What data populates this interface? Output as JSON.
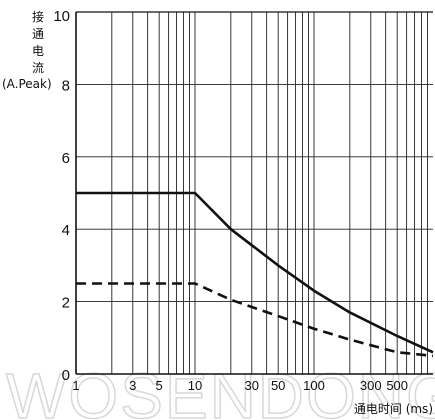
{
  "chart_data": {
    "type": "line",
    "title": "",
    "ylabel_chars": [
      "接",
      "通",
      "电",
      "流"
    ],
    "ylabel_unit": "(A.Peak)",
    "xlabel": "通电时间 (ms)",
    "xscale": "log",
    "xlim": [
      1,
      1000
    ],
    "ylim": [
      0,
      10
    ],
    "grid": true,
    "y_ticks": [
      "0",
      "2",
      "4",
      "6",
      "8",
      "10"
    ],
    "x_ticks": [
      {
        "value": 1,
        "label": "1"
      },
      {
        "value": 3,
        "label": "3"
      },
      {
        "value": 5,
        "label": "5"
      },
      {
        "value": 10,
        "label": "10"
      },
      {
        "value": 30,
        "label": "30"
      },
      {
        "value": 50,
        "label": "50"
      },
      {
        "value": 100,
        "label": "100"
      },
      {
        "value": 300,
        "label": "300"
      },
      {
        "value": 500,
        "label": "500"
      }
    ],
    "series": [
      {
        "style": "solid",
        "color": "#111111",
        "x": [
          1,
          10,
          20,
          50,
          100,
          200,
          500,
          1000
        ],
        "y": [
          5.0,
          5.0,
          4.0,
          3.0,
          2.3,
          1.7,
          1.05,
          0.6
        ]
      },
      {
        "style": "dashed",
        "color": "#111111",
        "x": [
          1,
          10,
          20,
          50,
          100,
          200,
          500,
          1000
        ],
        "y": [
          2.5,
          2.5,
          2.05,
          1.6,
          1.25,
          0.95,
          0.6,
          0.5
        ]
      }
    ]
  },
  "watermark": "WOSENDONG"
}
